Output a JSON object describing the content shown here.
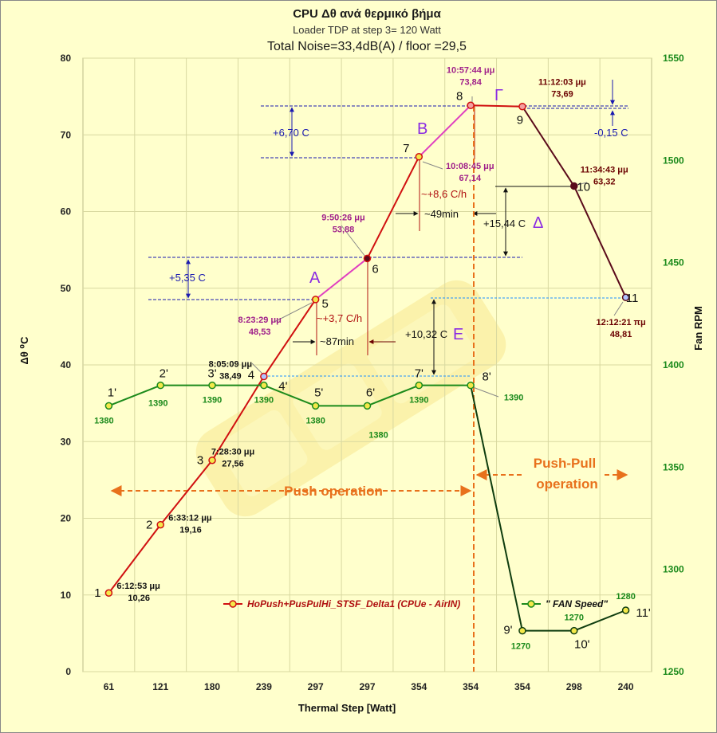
{
  "chart_data": {
    "type": "line",
    "title": "CPU  Δθ   ανά θερμικό βήμα",
    "subtitle": "Loader TDP at step 3= 120 Watt",
    "subtitle2": "Total Noise=33,4dB(A) / floor =29,5",
    "xlabel": "Thermal Step [Watt]",
    "ylabel": "Δθ ⁰C",
    "y2label": "Fan RPM",
    "categories": [
      "61",
      "121",
      "180",
      "239",
      "297",
      "297",
      "354",
      "354",
      "354",
      "298",
      "240"
    ],
    "ylim": [
      0,
      80
    ],
    "yticks": [
      0,
      10,
      20,
      30,
      40,
      50,
      60,
      70,
      80
    ],
    "y2lim": [
      1250,
      1550
    ],
    "y2ticks": [
      1250,
      1300,
      1350,
      1400,
      1450,
      1500,
      1550
    ],
    "series": [
      {
        "name": "HoPush+PusPulHi_STSF_Delta1 (CPUe - AirIN)",
        "axis": "left",
        "color": "#d01010",
        "values": [
          10.26,
          19.16,
          27.56,
          38.49,
          48.53,
          53.88,
          67.14,
          73.84,
          73.69,
          63.32,
          48.81
        ],
        "point_ids": [
          "1",
          "2",
          "3",
          "4",
          "5",
          "6",
          "7",
          "8",
          "9",
          "10",
          "11"
        ],
        "times": [
          "6:12:53 μμ",
          "6:33:12 μμ",
          "7:28:30 μμ",
          "8:05:09 μμ",
          "8:23:29 μμ",
          "9:50:26 μμ",
          "10:08:45 μμ",
          "10:57:44 μμ",
          "11:12:03 μμ",
          "11:34:43 μμ",
          "12:12:21 πμ"
        ],
        "value_labels": [
          "10,26",
          "19,16",
          "27,56",
          "38,49",
          "48,53",
          "53,88",
          "67,14",
          "73,84",
          "73,69",
          "63,32",
          "48,81"
        ]
      },
      {
        "name": "\" FAN Speed\"",
        "axis": "right",
        "color": "#1b8a1b",
        "values": [
          1380,
          1390,
          1390,
          1390,
          1380,
          1380,
          1390,
          1390,
          1270,
          1270,
          1280
        ],
        "point_ids": [
          "1'",
          "2'",
          "3'",
          "4'",
          "5'",
          "6'",
          "7'",
          "8'",
          "9'",
          "10'",
          "11'"
        ],
        "value_labels": [
          "1380",
          "1390",
          "1390",
          "1390",
          "1380",
          "1380",
          "1390",
          "1390",
          "1270",
          "1270",
          "1280"
        ]
      }
    ],
    "annotations": {
      "phase_labels": [
        "A",
        "B",
        "Γ",
        "Δ",
        "E"
      ],
      "delta_a": "+5,35 C",
      "delta_b": "+6,70 C",
      "delta_g": "-0,15 C",
      "delta_d": "+15,44 C",
      "delta_e": "+10,32 C",
      "rate_a": "~+3,7 C/h",
      "time_a": "~87min",
      "rate_b": "~+8,6 C/h",
      "time_b": "~49min",
      "push_label": "Push operation",
      "pushpull_label_1": "Push-Pull",
      "pushpull_label_2": "operation"
    },
    "colors": {
      "background": "#ffffcc",
      "grid": "#d8d8a0",
      "temp_line": "#d01010",
      "phase_b_line": "#e040c0",
      "cooldown_line": "#5a0a1a",
      "fan_line": "#1b8a1b",
      "fan_drop_line": "#0f3d0f",
      "marker_fill": "#f4e84a",
      "operation": "#e8711c",
      "guides": "#1a1ab0",
      "time_label_magenta": "#a0208a",
      "time_label_dark": "#6b0000",
      "time_label_black": "#111111"
    }
  }
}
